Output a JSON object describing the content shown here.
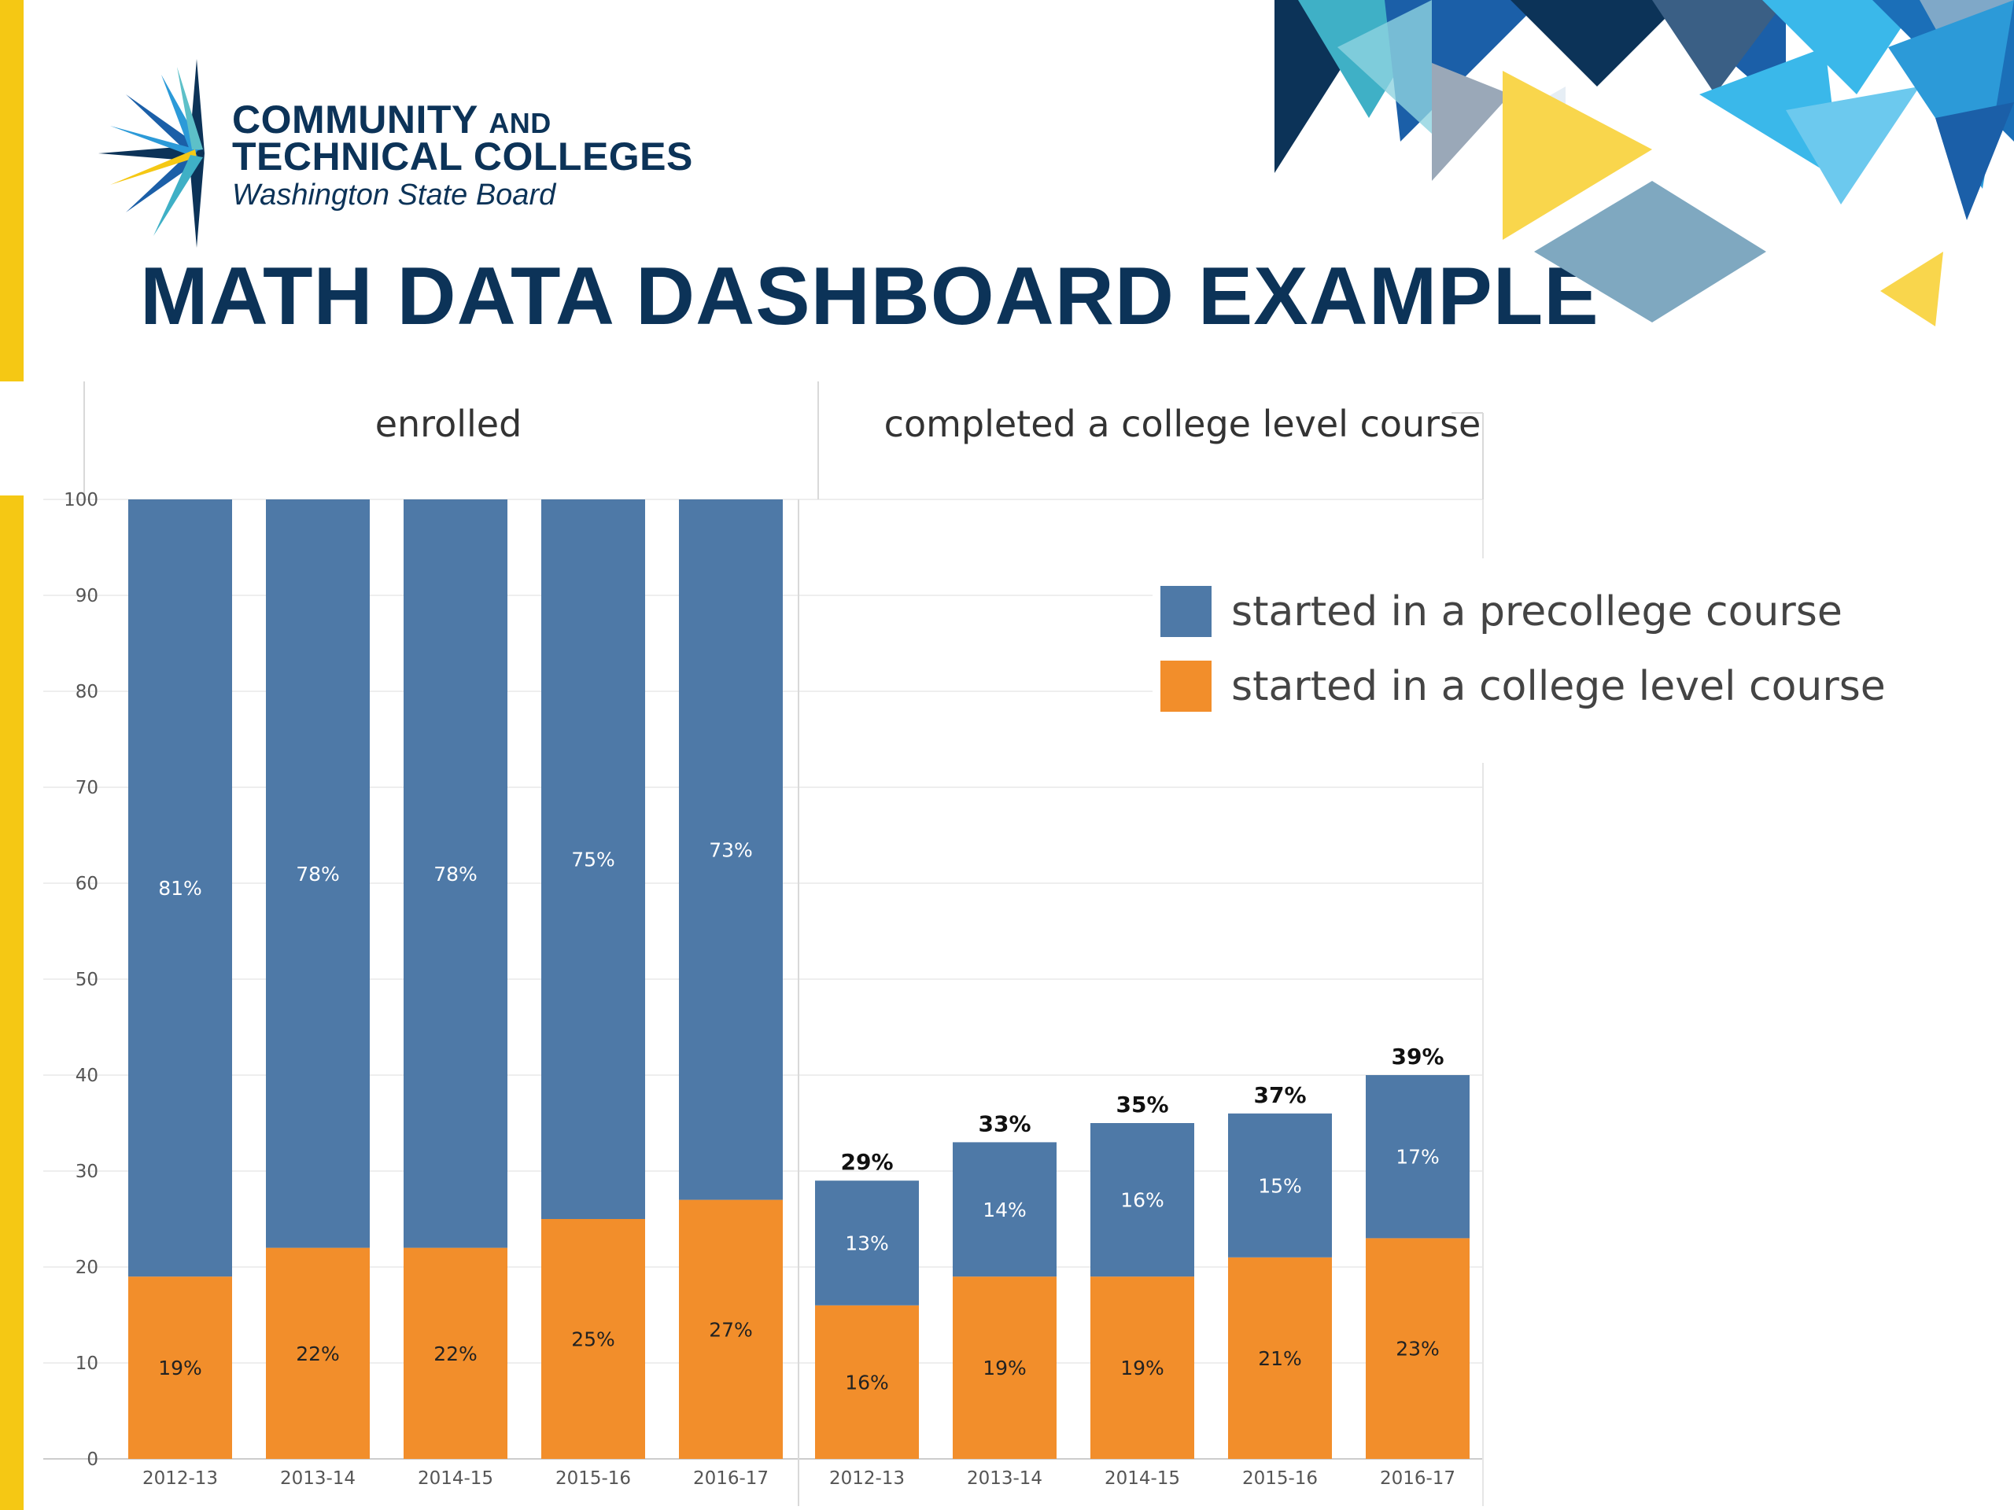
{
  "header": {
    "logo_line1": "COMMUNITY",
    "logo_line1_small": "AND",
    "logo_line2": "TECHNICAL COLLEGES",
    "logo_line3": "Washington State Board",
    "title": "MATH DATA DASHBOARD EXAMPLE"
  },
  "colors": {
    "precollege": "#4e79a7",
    "college_level": "#f28e2b",
    "accent_yellow": "#f5c814",
    "navy": "#0c3358"
  },
  "chart_data": {
    "type": "bar",
    "stacked": true,
    "yaxis": {
      "min": 0,
      "max": 100,
      "ticks": [
        0,
        10,
        20,
        30,
        40,
        50,
        60,
        70,
        80,
        90,
        100
      ]
    },
    "legend": {
      "placement": "top-right",
      "entries": [
        "started in a precollege course",
        "started in a college level course"
      ]
    },
    "panels": [
      {
        "header": "enrolled",
        "categories": [
          "2012-13",
          "2013-14",
          "2014-15",
          "2015-16",
          "2016-17"
        ],
        "series": [
          {
            "name": "started in a college level course",
            "values": [
              19,
              22,
              22,
              25,
              27
            ],
            "labels": [
              "19%",
              "22%",
              "22%",
              "25%",
              "27%"
            ]
          },
          {
            "name": "started in a precollege course",
            "values": [
              81,
              78,
              78,
              75,
              73
            ],
            "labels": [
              "81%",
              "78%",
              "78%",
              "75%",
              "73%"
            ]
          }
        ],
        "totals": []
      },
      {
        "header": "completed a college level course",
        "categories": [
          "2012-13",
          "2013-14",
          "2014-15",
          "2015-16",
          "2016-17"
        ],
        "series": [
          {
            "name": "started in a college level course",
            "values": [
              16,
              19,
              19,
              21,
              23
            ],
            "labels": [
              "16%",
              "19%",
              "19%",
              "21%",
              "23%"
            ]
          },
          {
            "name": "started in a precollege course",
            "values": [
              13,
              14,
              16,
              15,
              17
            ],
            "labels": [
              "13%",
              "14%",
              "16%",
              "15%",
              "17%"
            ]
          }
        ],
        "totals": [
          "29%",
          "33%",
          "35%",
          "37%",
          "39%"
        ]
      }
    ]
  }
}
